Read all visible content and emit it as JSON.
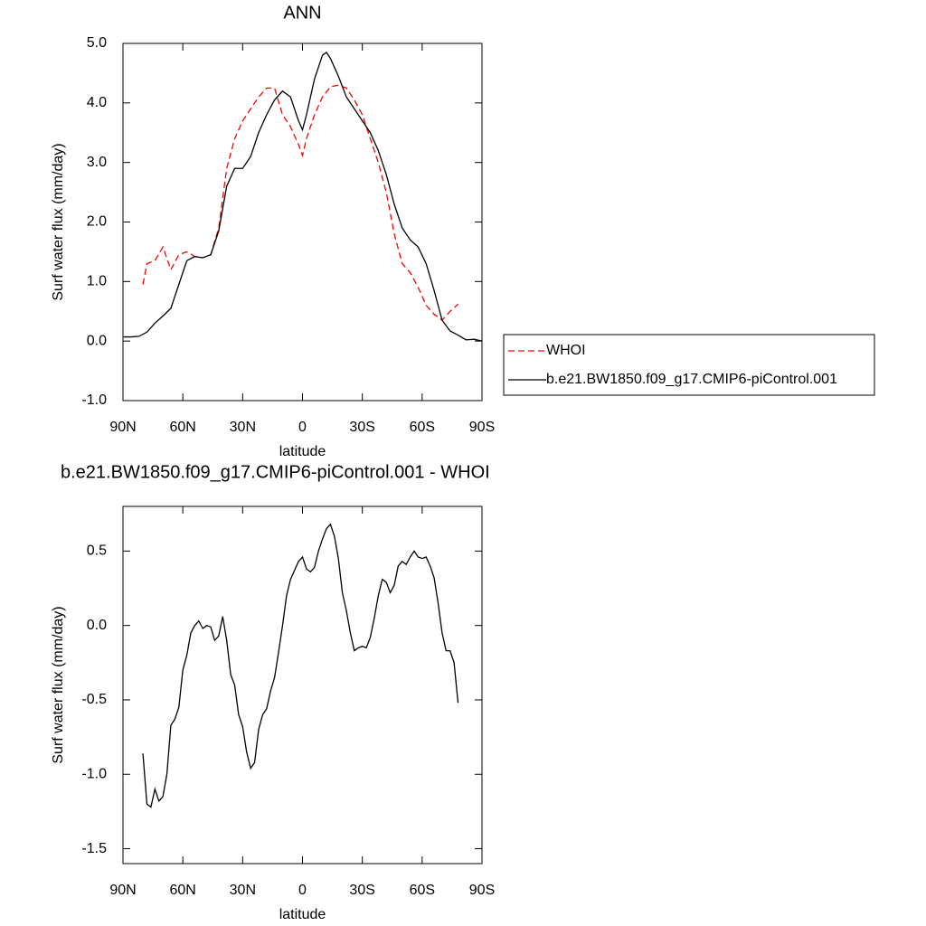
{
  "chart_data": [
    {
      "type": "line",
      "title": "ANN",
      "xlabel": "latitude",
      "ylabel": "Surf water flux (mm/day)",
      "xlim": [
        90,
        -90
      ],
      "xticks": [
        {
          "value": 90,
          "label": "90N"
        },
        {
          "value": 60,
          "label": "60N"
        },
        {
          "value": 30,
          "label": "30N"
        },
        0,
        {
          "value": -30,
          "label": "30S"
        },
        {
          "value": -60,
          "label": "60S"
        },
        {
          "value": -90,
          "label": "90S"
        }
      ],
      "ylim": [
        -1,
        5
      ],
      "yticks": [
        {
          "value": -1,
          "label": "-1.0"
        },
        {
          "value": 0,
          "label": "0.0"
        },
        {
          "value": 1,
          "label": "1.0"
        },
        {
          "value": 2,
          "label": "2.0"
        },
        {
          "value": 3,
          "label": "3.0"
        },
        {
          "value": 4,
          "label": "4.0"
        },
        {
          "value": 5,
          "label": "5.0"
        }
      ],
      "legend": "right",
      "series": [
        {
          "name": "WHOI",
          "color": "#ff0000",
          "dash": true,
          "x": [
            80,
            78,
            74,
            70,
            66,
            62,
            58,
            54,
            50,
            46,
            42,
            38,
            34,
            30,
            26,
            22,
            18,
            14,
            10,
            6,
            2,
            0,
            -2,
            -6,
            -10,
            -14,
            -18,
            -22,
            -26,
            -30,
            -34,
            -38,
            -42,
            -46,
            -50,
            -54,
            -58,
            -62,
            -66,
            -70,
            -74,
            -78
          ],
          "values": [
            0.95,
            1.3,
            1.35,
            1.58,
            1.2,
            1.45,
            1.5,
            1.42,
            1.4,
            1.45,
            1.9,
            2.9,
            3.4,
            3.7,
            3.9,
            4.1,
            4.25,
            4.25,
            3.8,
            3.6,
            3.3,
            3.12,
            3.4,
            3.8,
            4.1,
            4.27,
            4.3,
            4.25,
            4.05,
            3.8,
            3.4,
            3.0,
            2.5,
            1.8,
            1.3,
            1.15,
            0.9,
            0.6,
            0.45,
            0.35,
            0.5,
            0.62
          ]
        },
        {
          "name": "b.e21.BW1850.f09_g17.CMIP6-piControl.001",
          "color": "#000000",
          "dash": false,
          "x": [
            90,
            86,
            82,
            78,
            74,
            70,
            66,
            62,
            58,
            54,
            50,
            46,
            42,
            38,
            34,
            30,
            26,
            22,
            18,
            14,
            10,
            6,
            2,
            0,
            -2,
            -6,
            -10,
            -12,
            -14,
            -18,
            -22,
            -26,
            -30,
            -34,
            -38,
            -42,
            -46,
            -50,
            -54,
            -58,
            -62,
            -66,
            -70,
            -74,
            -78,
            -82,
            -86,
            -90
          ],
          "values": [
            0.07,
            0.07,
            0.08,
            0.15,
            0.3,
            0.42,
            0.55,
            0.95,
            1.35,
            1.42,
            1.4,
            1.45,
            1.85,
            2.6,
            2.9,
            2.9,
            3.1,
            3.5,
            3.8,
            4.05,
            4.2,
            4.1,
            3.7,
            3.55,
            3.8,
            4.4,
            4.8,
            4.85,
            4.75,
            4.45,
            4.1,
            3.9,
            3.7,
            3.5,
            3.2,
            2.8,
            2.3,
            1.9,
            1.7,
            1.58,
            1.3,
            0.85,
            0.35,
            0.17,
            0.1,
            0.02,
            0.03,
            0.0
          ]
        }
      ]
    },
    {
      "type": "line",
      "title": "b.e21.BW1850.f09_g17.CMIP6-piControl.001 - WHOI",
      "xlabel": "latitude",
      "ylabel": "Surf water flux (mm/day)",
      "xlim": [
        90,
        -90
      ],
      "xticks": [
        {
          "value": 90,
          "label": "90N"
        },
        {
          "value": 60,
          "label": "60N"
        },
        {
          "value": 30,
          "label": "30N"
        },
        0,
        {
          "value": -30,
          "label": "30S"
        },
        {
          "value": -60,
          "label": "60S"
        },
        {
          "value": -90,
          "label": "90S"
        }
      ],
      "ylim": [
        -1.6,
        0.8
      ],
      "yticks": [
        {
          "value": -1.5,
          "label": "-1.5"
        },
        {
          "value": -1,
          "label": "-1.0"
        },
        {
          "value": -0.5,
          "label": "-0.5"
        },
        {
          "value": 0,
          "label": "0.0"
        },
        0.5
      ],
      "series": [
        {
          "color": "#000000",
          "dash": false,
          "x": [
            80,
            78,
            76,
            74,
            72,
            70,
            68,
            66,
            64,
            62,
            60,
            58,
            56,
            54,
            52,
            50,
            48,
            46,
            44,
            42,
            40,
            38,
            36,
            34,
            32,
            30,
            28,
            26,
            24,
            22,
            20,
            18,
            16,
            14,
            12,
            10,
            8,
            6,
            4,
            2,
            0,
            -2,
            -4,
            -6,
            -8,
            -10,
            -12,
            -14,
            -16,
            -18,
            -20,
            -22,
            -24,
            -26,
            -28,
            -30,
            -32,
            -34,
            -36,
            -38,
            -40,
            -42,
            -44,
            -46,
            -48,
            -50,
            -52,
            -54,
            -56,
            -58,
            -60,
            -62,
            -64,
            -66,
            -68,
            -70,
            -72,
            -74,
            -76,
            -78
          ],
          "values": [
            -0.86,
            -1.2,
            -1.22,
            -1.1,
            -1.18,
            -1.15,
            -1.0,
            -0.67,
            -0.63,
            -0.55,
            -0.3,
            -0.2,
            -0.05,
            0.0,
            0.03,
            -0.02,
            0.0,
            -0.01,
            -0.1,
            -0.07,
            0.06,
            -0.1,
            -0.33,
            -0.4,
            -0.6,
            -0.68,
            -0.85,
            -0.96,
            -0.92,
            -0.7,
            -0.6,
            -0.56,
            -0.44,
            -0.35,
            -0.18,
            0.0,
            0.2,
            0.31,
            0.37,
            0.43,
            0.46,
            0.38,
            0.36,
            0.39,
            0.5,
            0.58,
            0.65,
            0.68,
            0.6,
            0.45,
            0.22,
            0.1,
            -0.05,
            -0.17,
            -0.15,
            -0.14,
            -0.15,
            -0.08,
            0.05,
            0.2,
            0.31,
            0.29,
            0.22,
            0.27,
            0.4,
            0.43,
            0.41,
            0.46,
            0.5,
            0.46,
            0.45,
            0.46,
            0.4,
            0.32,
            0.15,
            -0.05,
            -0.17,
            -0.17,
            -0.25,
            -0.52
          ]
        }
      ]
    }
  ]
}
